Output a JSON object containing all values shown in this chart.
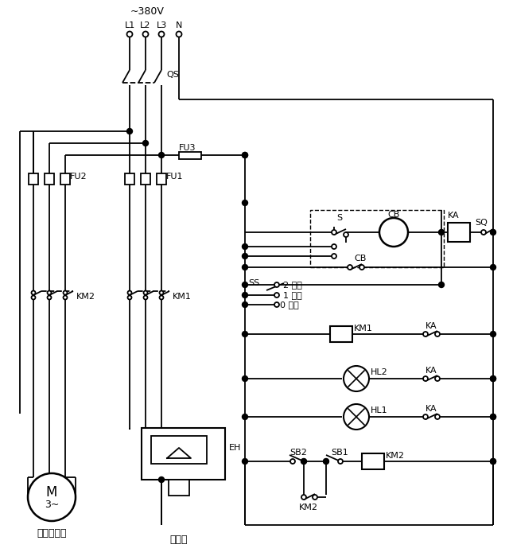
{
  "bg": "#ffffff",
  "figsize": [
    6.4,
    7.04
  ],
  "dpi": 100,
  "labels": {
    "voltage": "~380V",
    "L1": "L1",
    "L2": "L2",
    "L3": "L3",
    "N": "N",
    "QS": "QS",
    "FU1": "FU1",
    "FU2": "FU2",
    "FU3": "FU3",
    "KM1": "KM1",
    "KM2": "KM2",
    "KA": "KA",
    "SQ": "SQ",
    "CB": "CB",
    "S": "S",
    "SS": "SS",
    "HL1": "HL1",
    "HL2": "HL2",
    "EH": "EH",
    "SB1": "SB1",
    "SB2": "SB2",
    "motor_M": "M",
    "motor_3": "3~",
    "fan": "风扇电动机",
    "thermo": "热电偶",
    "pos2": "2 自动",
    "pos1": "1 手动",
    "pos0": "0 停止"
  },
  "xL1": 163,
  "xL2": 183,
  "xL3": 203,
  "xN": 225,
  "xCL": 308,
  "xCR": 620,
  "xFU2a": 42,
  "xFU2b": 62,
  "xFU2c": 82,
  "xFU1a": 163,
  "xFU1b": 183,
  "xFU1c": 203
}
